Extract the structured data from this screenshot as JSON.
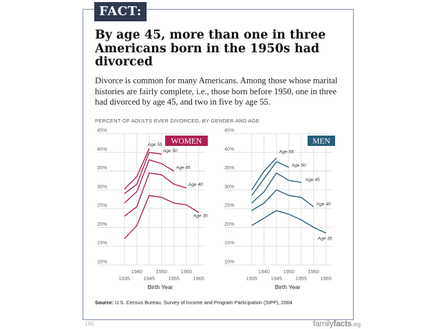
{
  "tag": "FACT:",
  "headline": "By age 45, more than one in three Americans born in the 1950s had divorced",
  "intro": "Divorce is common for many Americans. Among those whose marital histories are fairly complete, i.e., those born before 1950, one in three had divorced by age 45, and two in five by age 55.",
  "figure_caption": "PERCENT OF ADULTS EVER DIVORCED, BY GENDER AND AGE",
  "source": {
    "label": "Source:",
    "text": " U.S. Census Bureau, Survey of Income and Program Participation (SIPP), 2004."
  },
  "page_number": "165",
  "brand": {
    "part1": "family",
    "part2": "facts",
    "part3": ".org"
  },
  "colors": {
    "women": "#b01f54",
    "men": "#2a5e7a",
    "grid": "#d9d9d9",
    "tag_bg": "#2f3a52"
  },
  "chart_data": [
    {
      "type": "line",
      "panel": "WOMEN",
      "xlabel": "Birth Year",
      "ylabel": "",
      "xlim": [
        1932,
        1967
      ],
      "ylim": [
        10,
        45
      ],
      "x_ticks_upper": [
        "1940",
        "1950",
        "1960"
      ],
      "x_ticks_lower": [
        "1935",
        "1945",
        "1955",
        "1965"
      ],
      "y_ticks": [
        "45%",
        "40%",
        "35%",
        "30%",
        "25%",
        "20%",
        "15%",
        "10%"
      ],
      "grid": true,
      "series": [
        {
          "name": "Age 55",
          "x": [
            1935,
            1940,
            1945
          ],
          "values": [
            30.2,
            33.5,
            41.0
          ]
        },
        {
          "name": "Age 50",
          "x": [
            1935,
            1940,
            1945,
            1950
          ],
          "values": [
            29.0,
            31.5,
            40.0,
            39.5
          ]
        },
        {
          "name": "Age 45",
          "x": [
            1935,
            1940,
            1945,
            1950,
            1955
          ],
          "values": [
            26.5,
            29.5,
            38.0,
            37.0,
            35.0
          ]
        },
        {
          "name": "Age 40",
          "x": [
            1935,
            1940,
            1945,
            1950,
            1955,
            1960
          ],
          "values": [
            23.0,
            25.5,
            34.5,
            34.0,
            31.5,
            30.5
          ]
        },
        {
          "name": "Age 35",
          "x": [
            1935,
            1940,
            1945,
            1950,
            1955,
            1960,
            1965
          ],
          "values": [
            17.0,
            20.5,
            28.5,
            28.0,
            26.5,
            26.0,
            24.0
          ]
        }
      ]
    },
    {
      "type": "line",
      "panel": "MEN",
      "xlabel": "Birth Year",
      "ylabel": "",
      "xlim": [
        1932,
        1967
      ],
      "ylim": [
        10,
        45
      ],
      "x_ticks_upper": [
        "1940",
        "1950",
        "1960"
      ],
      "x_ticks_lower": [
        "1935",
        "1945",
        "1955",
        "1965"
      ],
      "y_ticks": [
        "45%",
        "40%",
        "35%",
        "30%",
        "25%",
        "20%",
        "15%",
        "10%"
      ],
      "grid": true,
      "series": [
        {
          "name": "Age 55",
          "x": [
            1935,
            1940,
            1945
          ],
          "values": [
            30.0,
            35.0,
            38.5
          ]
        },
        {
          "name": "Age 50",
          "x": [
            1935,
            1940,
            1945,
            1950
          ],
          "values": [
            28.5,
            33.0,
            37.5,
            36.0
          ]
        },
        {
          "name": "Age 45",
          "x": [
            1935,
            1940,
            1945,
            1950,
            1955
          ],
          "values": [
            26.5,
            29.5,
            34.5,
            32.5,
            32.0
          ]
        },
        {
          "name": "Age 40",
          "x": [
            1935,
            1940,
            1945,
            1950,
            1955,
            1960
          ],
          "values": [
            24.5,
            26.5,
            30.0,
            28.5,
            28.0,
            25.5
          ]
        },
        {
          "name": "Age 35",
          "x": [
            1935,
            1940,
            1945,
            1950,
            1955,
            1960,
            1965
          ],
          "values": [
            20.5,
            22.5,
            24.5,
            23.5,
            22.0,
            20.0,
            18.5
          ]
        }
      ]
    }
  ]
}
